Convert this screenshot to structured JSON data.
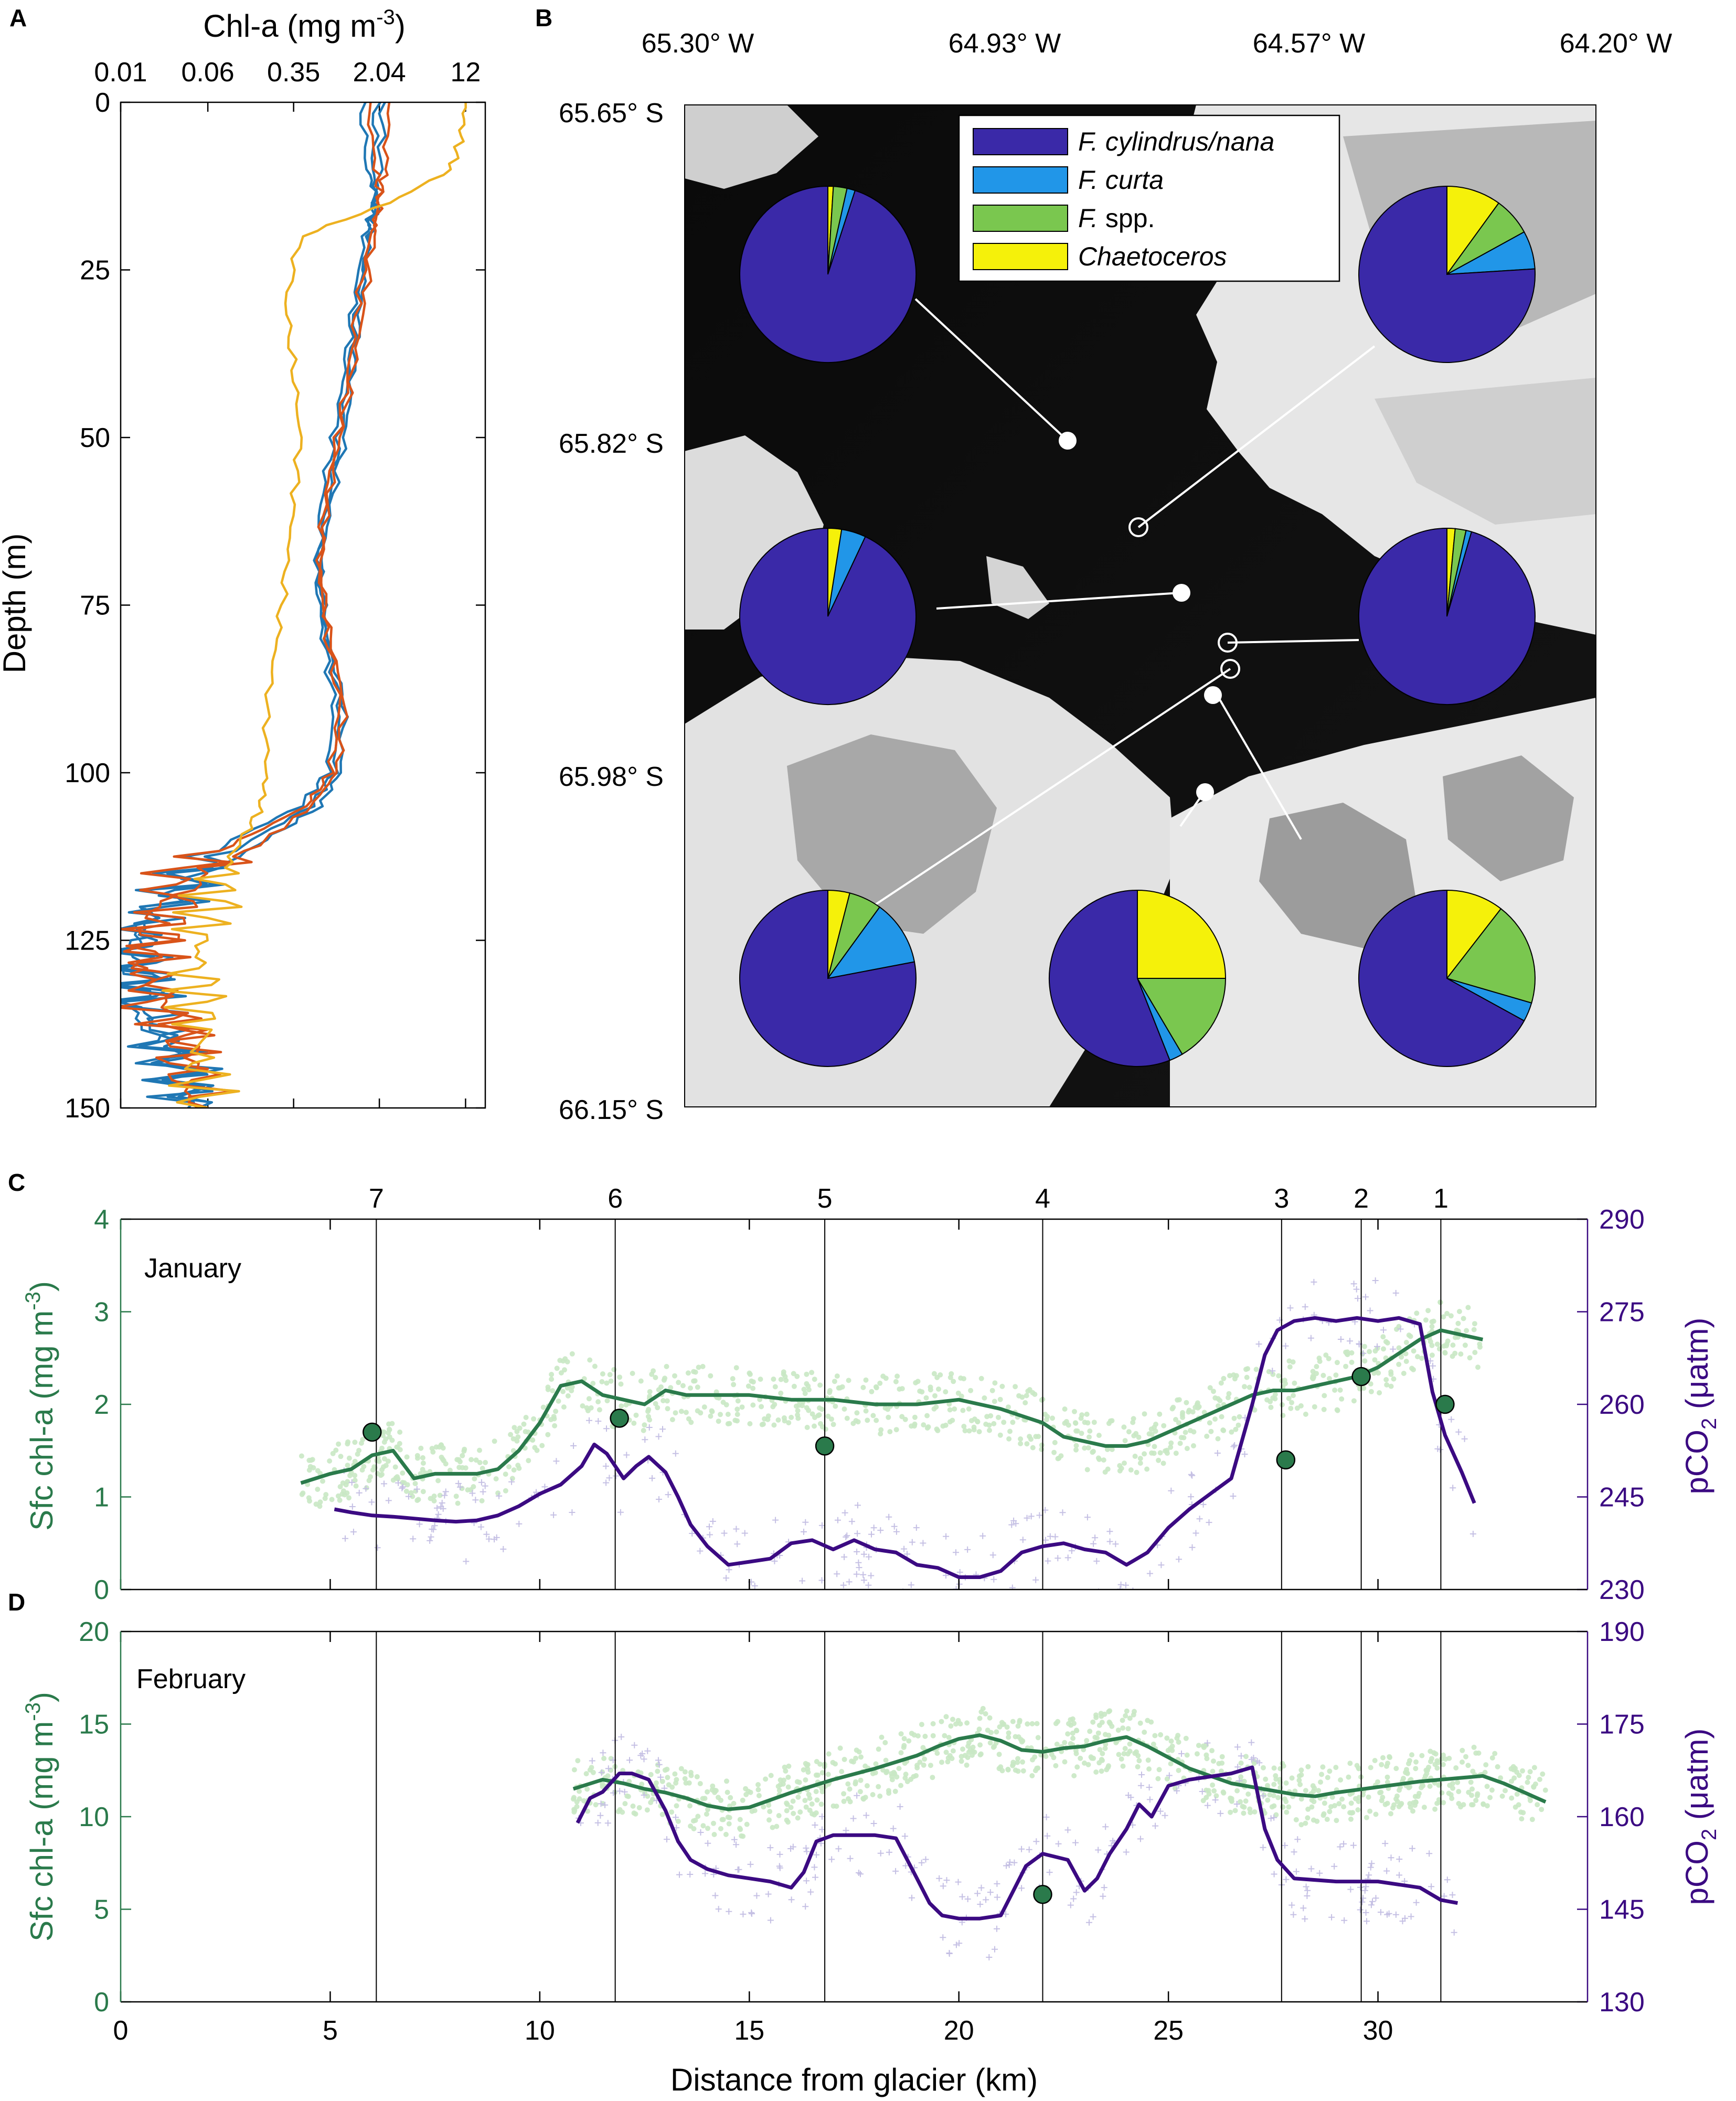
{
  "figure": {
    "panel_labels": [
      "A",
      "B",
      "C",
      "D"
    ]
  },
  "chart_data": [
    {
      "panel": "A",
      "type": "line",
      "xlabel": "Chl-a (mg m-3)",
      "xlabel_main": "Chl-a (mg m",
      "xlabel_sup": "-3",
      "xlabel_close": ")",
      "x_scale": "log",
      "x_ticks": [
        "0.01",
        "0.06",
        "0.35",
        "2.04",
        "12"
      ],
      "ylabel": "Depth (m)",
      "ylim": [
        150,
        0
      ],
      "y_ticks": [
        0,
        25,
        50,
        75,
        100,
        125,
        150
      ],
      "colors": {
        "blue": "#1f77b4",
        "orange": "#d95319",
        "yellow": "#edb120"
      },
      "series": [
        {
          "color": "blue",
          "depth": [
            0,
            10,
            15,
            20,
            30,
            40,
            50,
            60,
            70,
            80,
            90,
            100,
            105,
            110,
            115,
            120,
            125,
            130,
            135,
            140,
            145,
            150
          ],
          "chl": [
            1.9,
            1.8,
            1.9,
            1.5,
            1.2,
            1.0,
            0.8,
            0.6,
            0.6,
            0.7,
            0.9,
            0.8,
            0.5,
            0.15,
            0.05,
            0.02,
            0.012,
            0.015,
            0.012,
            0.02,
            0.03,
            0.05
          ]
        },
        {
          "color": "blue",
          "depth": [
            0,
            10,
            15,
            20,
            30,
            40,
            50,
            60,
            70,
            80,
            90,
            100,
            105,
            110,
            115,
            120,
            125,
            130,
            135,
            140,
            145,
            150
          ],
          "chl": [
            1.4,
            1.6,
            2.0,
            1.7,
            1.3,
            1.1,
            0.9,
            0.7,
            0.55,
            0.65,
            0.8,
            0.7,
            0.4,
            0.1,
            0.04,
            0.02,
            0.015,
            0.02,
            0.015,
            0.025,
            0.04,
            0.05
          ]
        },
        {
          "color": "blue",
          "depth": [
            0,
            10,
            15,
            20,
            30,
            40,
            50,
            60,
            70,
            80,
            90,
            100,
            105,
            110,
            115,
            120,
            125,
            130,
            135,
            140,
            145,
            150
          ],
          "chl": [
            2.2,
            2.1,
            1.8,
            1.6,
            1.4,
            1.2,
            1.0,
            0.75,
            0.6,
            0.7,
            1.0,
            0.9,
            0.6,
            0.2,
            0.06,
            0.025,
            0.012,
            0.014,
            0.02,
            0.03,
            0.03,
            0.04
          ]
        },
        {
          "color": "orange",
          "depth": [
            0,
            10,
            15,
            20,
            30,
            40,
            50,
            60,
            70,
            80,
            90,
            100,
            105,
            110,
            115,
            120,
            125,
            130,
            135,
            140,
            145,
            150
          ],
          "chl": [
            2.5,
            2.3,
            2.0,
            1.8,
            1.5,
            1.2,
            0.9,
            0.7,
            0.6,
            0.75,
            1.0,
            0.85,
            0.5,
            0.2,
            0.06,
            0.03,
            0.02,
            0.015,
            0.02,
            0.04,
            0.05,
            0.06
          ]
        },
        {
          "color": "orange",
          "depth": [
            0,
            10,
            15,
            20,
            30,
            40,
            50,
            60,
            70,
            80,
            90,
            100,
            105,
            110,
            115,
            120,
            125,
            130,
            135,
            140,
            145,
            150
          ],
          "chl": [
            1.6,
            1.9,
            2.1,
            1.7,
            1.3,
            1.1,
            0.85,
            0.65,
            0.6,
            0.7,
            0.9,
            0.75,
            0.45,
            0.12,
            0.03,
            0.02,
            0.018,
            0.02,
            0.03,
            0.04,
            0.03,
            0.05
          ]
        },
        {
          "color": "yellow",
          "depth": [
            0,
            5,
            10,
            15,
            20,
            30,
            40,
            50,
            60,
            70,
            80,
            90,
            100,
            105,
            110,
            115,
            120,
            125,
            130,
            135,
            140,
            145,
            150
          ],
          "chl": [
            12,
            11,
            9,
            2.5,
            0.4,
            0.3,
            0.35,
            0.4,
            0.35,
            0.3,
            0.25,
            0.2,
            0.2,
            0.18,
            0.12,
            0.08,
            0.06,
            0.05,
            0.05,
            0.05,
            0.05,
            0.05,
            0.06
          ]
        }
      ]
    },
    {
      "panel": "B",
      "type": "pie",
      "top_ticks": [
        "65.30° W",
        "64.93° W",
        "64.57° W",
        "64.20° W"
      ],
      "left_ticks": [
        "65.65° S",
        "65.82° S",
        "65.98° S",
        "66.15° S"
      ],
      "legend": [
        {
          "label": "F. cylindrus/nana",
          "italic": true,
          "color": "#3a29a8"
        },
        {
          "label": "F. curta",
          "italic": true,
          "color": "#2196e8"
        },
        {
          "label": "F.",
          "suffix": " spp.",
          "italic": true,
          "color": "#7ac74f"
        },
        {
          "label": "Chaetoceros",
          "italic": true,
          "color": "#f5f10a"
        }
      ],
      "pies": [
        {
          "fractions": [
            0.95,
            0.015,
            0.025,
            0.01
          ]
        },
        {
          "fractions": [
            0.76,
            0.07,
            0.07,
            0.1
          ]
        },
        {
          "fractions": [
            0.93,
            0.045,
            0.0,
            0.025
          ]
        },
        {
          "fractions": [
            0.955,
            0.01,
            0.02,
            0.015
          ]
        },
        {
          "fractions": [
            0.78,
            0.12,
            0.06,
            0.04
          ]
        },
        {
          "fractions": [
            0.56,
            0.025,
            0.165,
            0.25
          ]
        },
        {
          "fractions": [
            0.67,
            0.035,
            0.19,
            0.105
          ]
        }
      ]
    },
    {
      "panel": "C",
      "type": "line",
      "month": "January",
      "xlim": [
        0,
        35
      ],
      "x_ticks": [
        0,
        5,
        10,
        15,
        20,
        25,
        30
      ],
      "ylabel_left_main": "Sfc chl-a (mg m",
      "ylabel_left_sup": "-3",
      "ylabel_left_close": ")",
      "ylabel_right_main": "pCO",
      "ylabel_right_sub": "2",
      "ylabel_right_unit": " (μatm)",
      "ylim_left": [
        0,
        4
      ],
      "y_ticks_left": [
        0,
        1,
        2,
        3,
        4
      ],
      "ylim_right": [
        230,
        290
      ],
      "y_ticks_right": [
        230,
        245,
        260,
        275,
        290
      ],
      "colors": {
        "chl": "#2a7a4b",
        "pco2": "#3b0a82",
        "chl_scatter": "#c9e8c4",
        "pco2_scatter": "#c5c0e4"
      },
      "stations": [
        {
          "label": "7",
          "x": 6.1
        },
        {
          "label": "6",
          "x": 11.8
        },
        {
          "label": "5",
          "x": 16.8
        },
        {
          "label": "4",
          "x": 22.0
        },
        {
          "label": "3",
          "x": 27.7
        },
        {
          "label": "2",
          "x": 29.6
        },
        {
          "label": "1",
          "x": 31.5
        }
      ],
      "station_points": [
        {
          "x": 6.0,
          "y": 1.7
        },
        {
          "x": 11.9,
          "y": 1.85
        },
        {
          "x": 16.8,
          "y": 1.55
        },
        {
          "x": 27.8,
          "y": 1.4
        },
        {
          "x": 29.6,
          "y": 2.3
        },
        {
          "x": 31.6,
          "y": 2.0
        }
      ],
      "chl_line": {
        "x": [
          4.3,
          5,
          5.5,
          6,
          6.5,
          7,
          7.5,
          8,
          8.5,
          9,
          9.5,
          10,
          10.5,
          11,
          11.5,
          12,
          12.5,
          13,
          13.5,
          14,
          15,
          16,
          17,
          18,
          19,
          20,
          21,
          22,
          22.5,
          23,
          23.5,
          24,
          24.5,
          25,
          25.5,
          26,
          26.5,
          27,
          27.5,
          28,
          28.5,
          29,
          29.5,
          30,
          30.5,
          31,
          31.5,
          32,
          32.5
        ],
        "y": [
          1.15,
          1.25,
          1.3,
          1.45,
          1.5,
          1.2,
          1.25,
          1.25,
          1.25,
          1.3,
          1.5,
          1.8,
          2.2,
          2.25,
          2.1,
          2.05,
          2.0,
          2.15,
          2.1,
          2.1,
          2.1,
          2.05,
          2.05,
          2.0,
          2.0,
          2.05,
          1.95,
          1.8,
          1.65,
          1.6,
          1.55,
          1.55,
          1.6,
          1.7,
          1.8,
          1.9,
          2.0,
          2.1,
          2.15,
          2.15,
          2.2,
          2.25,
          2.3,
          2.4,
          2.55,
          2.7,
          2.8,
          2.75,
          2.7
        ]
      },
      "pco2_line": {
        "x": [
          5.1,
          5.5,
          6,
          6.5,
          7,
          7.5,
          8,
          8.5,
          9,
          9.5,
          10,
          10.5,
          11,
          11.3,
          11.6,
          12,
          12.3,
          12.6,
          13,
          13.3,
          13.6,
          14,
          14.5,
          15,
          15.5,
          16,
          16.5,
          17,
          17.5,
          18,
          18.5,
          19,
          19.5,
          20,
          20.5,
          21,
          21.5,
          22,
          22.5,
          23,
          23.5,
          24,
          24.5,
          25,
          25.5,
          26,
          26.5,
          27,
          27.3,
          27.6,
          28,
          28.5,
          29,
          29.5,
          30,
          30.5,
          31,
          31.3,
          31.6,
          32,
          32.3
        ],
        "y": [
          243,
          242.5,
          242,
          241.8,
          241.5,
          241.2,
          241,
          241.2,
          242,
          243.5,
          245.5,
          247,
          250,
          253.5,
          252,
          248,
          250,
          251.5,
          249,
          245,
          240.5,
          237,
          234,
          234.5,
          235,
          237.5,
          238,
          236.5,
          238,
          236.5,
          236,
          234,
          233.5,
          232,
          232,
          233,
          236,
          237,
          237.5,
          236.5,
          236,
          234,
          236,
          240,
          243,
          245.5,
          248,
          260,
          268,
          272,
          273.5,
          274,
          273.5,
          274,
          273.5,
          274,
          273,
          262,
          255,
          249,
          244
        ]
      }
    },
    {
      "panel": "D",
      "type": "line",
      "month": "February",
      "xlim": [
        0,
        35
      ],
      "x_ticks": [
        0,
        5,
        10,
        15,
        20,
        25,
        30
      ],
      "xlabel": "Distance from glacier (km)",
      "ylabel_left_main": "Sfc chl-a (mg m",
      "ylabel_left_sup": "-3",
      "ylabel_left_close": ")",
      "ylabel_right_main": "pCO",
      "ylabel_right_sub": "2",
      "ylabel_right_unit": " (μatm)",
      "ylim_left": [
        0,
        20
      ],
      "y_ticks_left": [
        0,
        5,
        10,
        15,
        20
      ],
      "ylim_right": [
        130,
        190
      ],
      "y_ticks_right": [
        130,
        145,
        160,
        175,
        190
      ],
      "station_x": [
        6.1,
        11.8,
        16.8,
        22.0,
        27.7,
        29.6,
        31.5
      ],
      "station_points": [
        {
          "x": 22.0,
          "y": 5.8
        }
      ],
      "chl_line": {
        "x": [
          10.8,
          11.5,
          12,
          12.5,
          13,
          13.5,
          14,
          14.5,
          15,
          16,
          17,
          18,
          19,
          19.5,
          20,
          20.5,
          21,
          21.5,
          22,
          22.5,
          23,
          23.5,
          24,
          24.5,
          25,
          25.5,
          26,
          26.5,
          27,
          27.5,
          28,
          28.5,
          29,
          30,
          31,
          32,
          32.5,
          33,
          33.5,
          34
        ],
        "y": [
          11.5,
          12,
          11.8,
          11.5,
          11.3,
          11.0,
          10.6,
          10.4,
          10.5,
          11.3,
          12.0,
          12.6,
          13.3,
          13.8,
          14.2,
          14.4,
          14.1,
          13.6,
          13.5,
          13.7,
          13.8,
          14.1,
          14.3,
          13.8,
          13.2,
          12.6,
          12.2,
          11.8,
          11.6,
          11.4,
          11.2,
          11.1,
          11.3,
          11.6,
          11.9,
          12.1,
          12.2,
          11.8,
          11.3,
          10.8
        ]
      },
      "pco2_line": {
        "x": [
          10.9,
          11.2,
          11.5,
          11.9,
          12.2,
          12.6,
          13,
          13.3,
          13.6,
          14,
          14.5,
          15,
          15.5,
          16,
          16.3,
          16.6,
          17,
          17.5,
          18,
          18.5,
          19,
          19.3,
          19.6,
          20,
          20.5,
          21,
          21.3,
          21.6,
          22,
          22.3,
          22.6,
          23,
          23.3,
          23.6,
          24,
          24.3,
          24.6,
          25,
          25.5,
          26,
          26.5,
          27,
          27.3,
          27.6,
          28,
          29,
          30,
          31,
          31.5,
          31.9
        ],
        "y": [
          159,
          163,
          164,
          167,
          167,
          166,
          161,
          156,
          153,
          151.5,
          150.5,
          150,
          149.5,
          148.5,
          151,
          156,
          157,
          157,
          157,
          156.5,
          150,
          146,
          144,
          143.5,
          143.5,
          144,
          148,
          152,
          154,
          153.5,
          153,
          148,
          150,
          154,
          158,
          162,
          160,
          165,
          166,
          166.5,
          167,
          168,
          158,
          153,
          150,
          149.5,
          149.5,
          148.5,
          146.5,
          146
        ]
      }
    }
  ]
}
